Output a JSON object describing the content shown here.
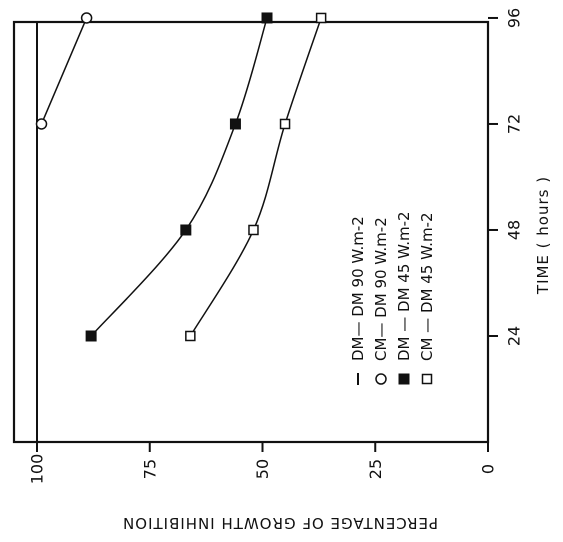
{
  "chart_data": {
    "type": "scatter",
    "orientation": "rotated-90-clockwise",
    "xlabel": "TIME ( hours )",
    "ylabel": "PERCENTAGE OF GROWTH INHIBITION",
    "x_ticks": [
      24,
      48,
      72,
      96
    ],
    "x_tick_labels": [
      "24",
      "48",
      "72",
      "96"
    ],
    "xlim": [
      0,
      100
    ],
    "y_ticks": [
      0,
      25,
      50,
      75,
      100
    ],
    "y_tick_labels": [
      "0",
      "25",
      "50",
      "75",
      "100"
    ],
    "ylim": [
      0,
      105
    ],
    "grid": false,
    "legend_position": "inside, lower x (near 48 h), right of curves",
    "series": [
      {
        "name": "DM— DM 90 W.m-2",
        "marker": "line",
        "fit": false,
        "x": [
          0,
          100
        ],
        "y": [
          100,
          100
        ]
      },
      {
        "name": "CM— DM 90 W.m-2",
        "marker": "open-circle",
        "fit": true,
        "x": [
          72,
          96
        ],
        "y": [
          99,
          89
        ]
      },
      {
        "name": "DM — DM 45 W.m-2",
        "marker": "filled-square",
        "fit": true,
        "x": [
          24,
          48,
          72,
          96
        ],
        "y": [
          88,
          67,
          56,
          49
        ]
      },
      {
        "name": "CM — DM 45 W.m-2",
        "marker": "open-square",
        "fit": true,
        "x": [
          24,
          48,
          72,
          96
        ],
        "y": [
          66,
          52,
          45,
          37
        ]
      }
    ]
  }
}
